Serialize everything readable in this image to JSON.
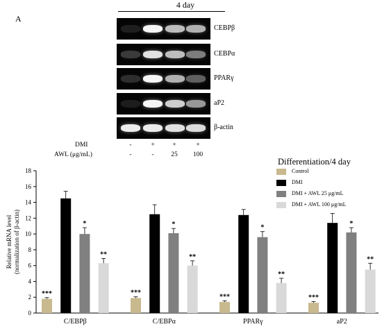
{
  "figure": {
    "panel_letter": "A",
    "period_label": "4 day"
  },
  "gel": {
    "markers": [
      {
        "label": "CEBPβ",
        "intensities": [
          0.12,
          0.98,
          0.82,
          0.78
        ]
      },
      {
        "label": "CEBPα",
        "intensities": [
          0.3,
          0.92,
          0.82,
          0.6
        ]
      },
      {
        "label": "PPARγ",
        "intensities": [
          0.22,
          0.98,
          0.78,
          0.48
        ]
      },
      {
        "label": "aP2",
        "intensities": [
          0.1,
          0.98,
          0.86,
          0.7
        ]
      },
      {
        "label": "β-actin",
        "intensities": [
          0.95,
          0.95,
          0.92,
          0.9
        ]
      }
    ]
  },
  "treatments": {
    "rows": [
      {
        "label": "DMI",
        "values": [
          "-",
          "+",
          "+",
          "+"
        ]
      },
      {
        "label": "AWL (μg/mL)",
        "values": [
          "-",
          "-",
          "25",
          "100"
        ]
      }
    ]
  },
  "legend": {
    "title": "Differentiation/4  day",
    "items": [
      {
        "label": "Control",
        "color": "#c8b98e"
      },
      {
        "label": "DMI",
        "color": "#000000"
      },
      {
        "label": "DMI + AWL 25  μg/mL",
        "color": "#808080"
      },
      {
        "label": "DMI + AWL 100  μg/mL",
        "color": "#d9d9d9"
      }
    ]
  },
  "chart_data": {
    "type": "bar",
    "ylabel": "Relative  mRNA level\n(normalization  of β-actin)",
    "xlabel": "",
    "ylim": [
      0,
      18
    ],
    "yticks": [
      0,
      2,
      4,
      6,
      8,
      10,
      12,
      14,
      16,
      18
    ],
    "categories": [
      "C/EBPβ",
      "C/EBPα",
      "PPARγ",
      "aP2"
    ],
    "series": [
      {
        "name": "Control",
        "color": "#c8b98e",
        "values": [
          1.8,
          1.9,
          1.4,
          1.3
        ],
        "errors": [
          0.15,
          0.15,
          0.15,
          0.15
        ],
        "significance": [
          "***",
          "***",
          "***",
          "***"
        ]
      },
      {
        "name": "DMI",
        "color": "#000000",
        "values": [
          14.5,
          12.5,
          12.4,
          11.4
        ],
        "errors": [
          0.9,
          1.2,
          0.7,
          1.2
        ],
        "significance": [
          "",
          "",
          "",
          ""
        ]
      },
      {
        "name": "DMI + AWL 25  μg/mL",
        "color": "#808080",
        "values": [
          10.0,
          10.1,
          9.6,
          10.2
        ],
        "errors": [
          0.8,
          0.6,
          0.7,
          0.6
        ],
        "significance": [
          "*",
          "*",
          "*",
          "*"
        ]
      },
      {
        "name": "DMI + AWL 100  μg/mL",
        "color": "#d9d9d9",
        "values": [
          6.3,
          6.0,
          3.8,
          5.5
        ],
        "errors": [
          0.6,
          0.6,
          0.6,
          0.8
        ],
        "significance": [
          "**",
          "**",
          "**",
          "**"
        ]
      }
    ]
  }
}
